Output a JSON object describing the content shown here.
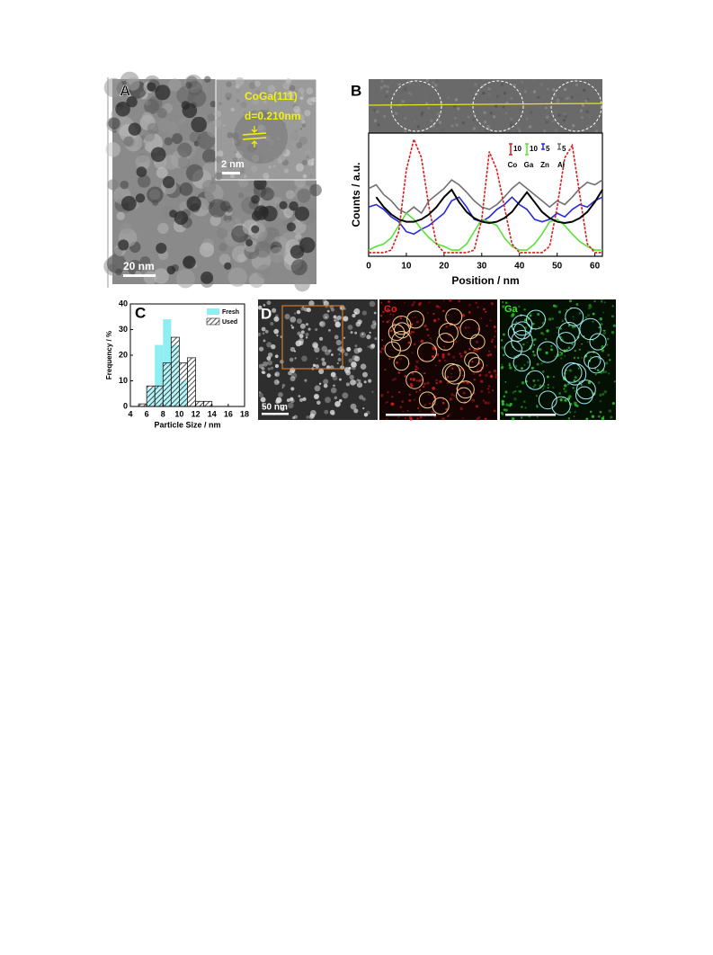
{
  "panels": {
    "A": {
      "label": "A",
      "inset_title": "CoGa(111)",
      "inset_spacing": "d=0.210nm",
      "inset_scale": "2 nm",
      "scale_bar": "20 nm"
    },
    "D": {
      "label": "D",
      "scale_bar": "50 nm",
      "map_co": "Co",
      "map_ga": "Ga"
    }
  },
  "chart_data": [
    {
      "type": "line",
      "label": "B",
      "xlabel": "Position / nm",
      "ylabel": "Counts / a.u.",
      "x": [
        0,
        2,
        4,
        6,
        8,
        10,
        12,
        14,
        16,
        18,
        20,
        22,
        24,
        26,
        28,
        30,
        32,
        34,
        36,
        38,
        40,
        42,
        44,
        46,
        48,
        50,
        52,
        54,
        56,
        58,
        60,
        62
      ],
      "xlim": [
        0,
        62
      ],
      "xticks": [
        0,
        10,
        20,
        30,
        40,
        50,
        60
      ],
      "ylim": [
        0,
        100
      ],
      "series": [
        {
          "name": "Co",
          "scale": 10,
          "color": "#d42020",
          "dashed": true,
          "values": [
            3,
            3,
            3,
            5,
            20,
            70,
            95,
            80,
            40,
            10,
            3,
            3,
            3,
            3,
            5,
            30,
            85,
            70,
            40,
            10,
            3,
            3,
            3,
            3,
            8,
            40,
            80,
            90,
            50,
            10,
            3,
            3
          ]
        },
        {
          "name": "Ga",
          "scale": 10,
          "color": "#5be03a",
          "dashed": false,
          "values": [
            5,
            8,
            10,
            15,
            25,
            35,
            30,
            22,
            15,
            10,
            8,
            5,
            5,
            10,
            20,
            30,
            28,
            25,
            15,
            8,
            5,
            5,
            10,
            18,
            28,
            30,
            25,
            18,
            12,
            8,
            5,
            5
          ]
        },
        {
          "name": "Zn",
          "scale": 5,
          "color": "#2a2ad8",
          "dashed": false,
          "values": [
            40,
            42,
            38,
            32,
            28,
            20,
            18,
            22,
            25,
            30,
            35,
            45,
            48,
            40,
            30,
            28,
            32,
            38,
            42,
            48,
            42,
            38,
            30,
            28,
            30,
            35,
            32,
            38,
            42,
            40,
            45,
            48
          ]
        },
        {
          "name": "Al",
          "scale": 5,
          "color": "#707070",
          "dashed": false,
          "values": [
            55,
            58,
            50,
            45,
            38,
            35,
            40,
            35,
            45,
            50,
            55,
            62,
            58,
            52,
            45,
            40,
            38,
            42,
            48,
            55,
            60,
            55,
            50,
            45,
            40,
            45,
            42,
            48,
            55,
            60,
            58,
            62
          ]
        }
      ],
      "fit": {
        "color": "#000000",
        "values": [
          null,
          48,
          40,
          34,
          30,
          28,
          28,
          30,
          34,
          40,
          48,
          54,
          44,
          36,
          31,
          28,
          27,
          28,
          31,
          36,
          44,
          52,
          44,
          36,
          31,
          28,
          27,
          28,
          31,
          36,
          44,
          54
        ]
      }
    },
    {
      "type": "histogram",
      "label": "C",
      "xlabel": "Particle Size / nm",
      "ylabel": "Frequency / %",
      "bins": [
        5,
        6,
        7,
        8,
        9,
        10,
        11,
        12,
        13,
        14
      ],
      "xlim": [
        4,
        18
      ],
      "xticks": [
        4,
        6,
        8,
        10,
        12,
        14,
        16,
        18
      ],
      "ylim": [
        0,
        40
      ],
      "yticks": [
        0,
        10,
        20,
        30,
        40
      ],
      "legend": "upper right",
      "series": [
        {
          "name": "Fresh",
          "color": "#8eeef2",
          "hatched": false,
          "values": [
            0,
            7,
            24,
            34,
            24,
            10,
            0,
            0,
            0
          ]
        },
        {
          "name": "Used",
          "color": "#222222",
          "hatched": true,
          "values": [
            1,
            8,
            8,
            17,
            27,
            17,
            19,
            2,
            2
          ]
        }
      ]
    }
  ]
}
